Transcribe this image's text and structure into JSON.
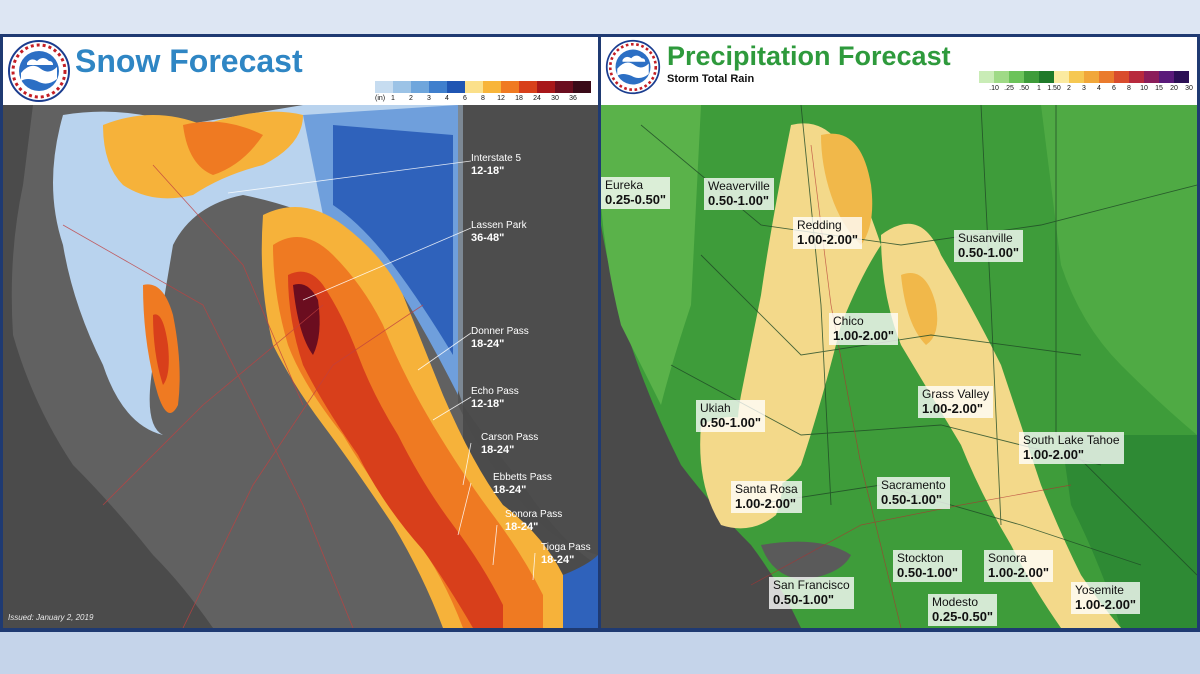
{
  "snow": {
    "title": "Snow Forecast",
    "legend": {
      "unit": "(in)",
      "ticks": [
        "1",
        "2",
        "3",
        "4",
        "6",
        "8",
        "12",
        "18",
        "24",
        "30",
        "36"
      ],
      "colors": [
        "#c6dcf0",
        "#9cc3e6",
        "#6fa6dc",
        "#3f7fcd",
        "#1f55b3",
        "#fbe08a",
        "#f8b53a",
        "#f07a22",
        "#d8401b",
        "#a8171a",
        "#6b0d1f",
        "#3a0a18"
      ]
    },
    "labels": [
      {
        "name": "Interstate 5",
        "value": "12-18\""
      },
      {
        "name": "Lassen Park",
        "value": "36-48\""
      },
      {
        "name": "Donner Pass",
        "value": "18-24\""
      },
      {
        "name": "Echo Pass",
        "value": "12-18\""
      },
      {
        "name": "Carson Pass",
        "value": "18-24\""
      },
      {
        "name": "Ebbetts Pass",
        "value": "18-24\""
      },
      {
        "name": "Sonora Pass",
        "value": "18-24\""
      },
      {
        "name": "Tioga Pass",
        "value": "18-24\""
      }
    ],
    "issued": "Issued: January 2, 2019"
  },
  "precip": {
    "title": "Precipitation Forecast",
    "subtitle": "Storm Total Rain",
    "legend": {
      "ticks": [
        ".10",
        ".25",
        ".50",
        "1",
        "1.50",
        "2",
        "3",
        "4",
        "6",
        "8",
        "10",
        "15",
        "20",
        "30"
      ],
      "colors": [
        "#c9ecb6",
        "#9fda86",
        "#6cc35a",
        "#3e9c3a",
        "#1f7a2a",
        "#fbeaa0",
        "#f6c852",
        "#f1a73a",
        "#ea7b2d",
        "#d94c2d",
        "#b82a3d",
        "#8b1d5a",
        "#5a1a7a",
        "#2b0f55"
      ]
    },
    "labels": [
      {
        "name": "Eureka",
        "value": "0.25-0.50\""
      },
      {
        "name": "Weaverville",
        "value": "0.50-1.00\""
      },
      {
        "name": "Redding",
        "value": "1.00-2.00\""
      },
      {
        "name": "Susanville",
        "value": "0.50-1.00\""
      },
      {
        "name": "Chico",
        "value": "1.00-2.00\""
      },
      {
        "name": "Grass Valley",
        "value": "1.00-2.00\""
      },
      {
        "name": "Ukiah",
        "value": "0.50-1.00\""
      },
      {
        "name": "South Lake Tahoe",
        "value": "1.00-2.00\""
      },
      {
        "name": "Santa Rosa",
        "value": "1.00-2.00\""
      },
      {
        "name": "Sacramento",
        "value": "0.50-1.00\""
      },
      {
        "name": "Stockton",
        "value": "0.50-1.00\""
      },
      {
        "name": "Sonora",
        "value": "1.00-2.00\""
      },
      {
        "name": "San Francisco",
        "value": "0.50-1.00\""
      },
      {
        "name": "Modesto",
        "value": "0.25-0.50\""
      },
      {
        "name": "Yosemite",
        "value": "1.00-2.00\""
      }
    ]
  }
}
